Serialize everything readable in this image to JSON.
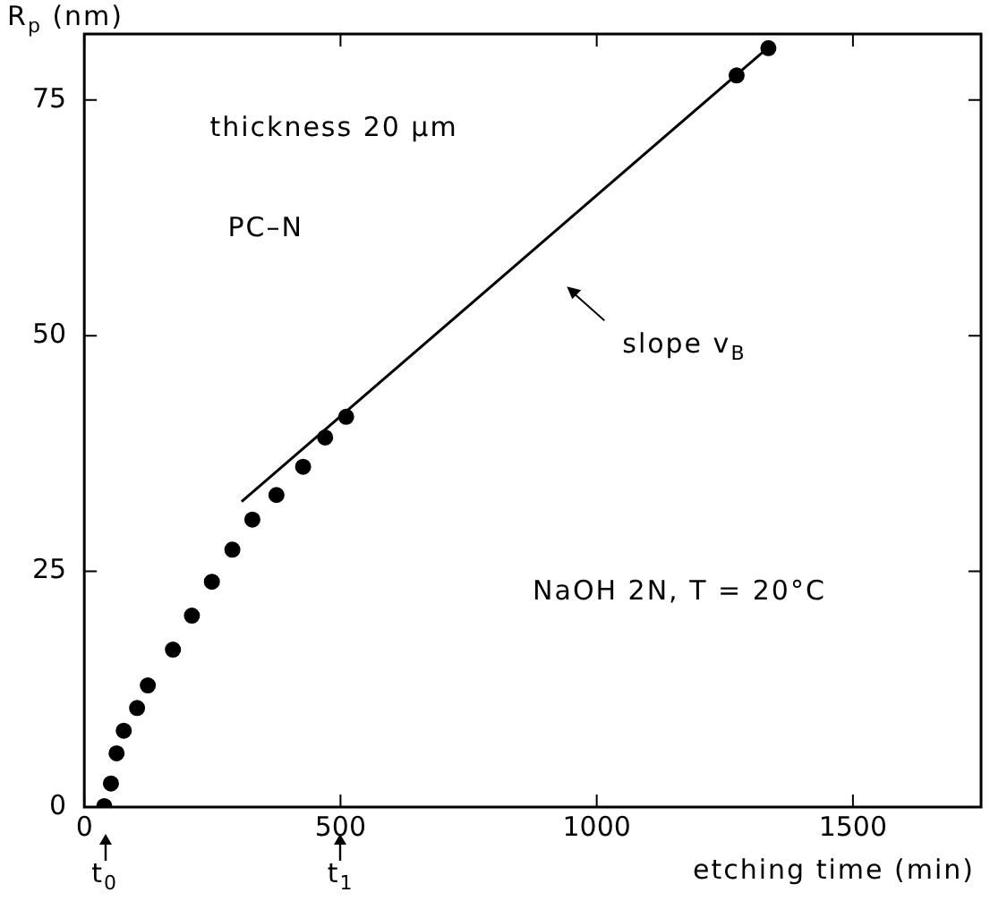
{
  "chart_data": {
    "type": "scatter",
    "xlabel": "etching time (min)",
    "ylabel": "R$_{p}$ (nm)",
    "xlim": [
      0,
      1750
    ],
    "xticks": [
      0,
      500,
      1000,
      1500
    ],
    "ylim": [
      0,
      82
    ],
    "yticks": [
      0,
      25,
      50,
      75
    ],
    "series": [
      {
        "type": "scatter",
        "color": "#000000",
        "marker": "circle",
        "x": [
          39,
          52,
          63,
          77,
          103,
          124,
          173,
          210,
          249,
          289,
          328,
          375,
          427,
          470,
          511,
          1273,
          1335
        ],
        "values": [
          0.1,
          2.5,
          5.7,
          8.1,
          10.5,
          12.9,
          16.7,
          20.3,
          23.9,
          27.3,
          30.5,
          33.1,
          36.1,
          39.2,
          41.4,
          77.6,
          80.5
        ]
      },
      {
        "type": "line",
        "color": "#000000",
        "marker": "none",
        "x": [
          307,
          1333
        ],
        "values": [
          32.4,
          80.5
        ]
      }
    ],
    "grid": false,
    "legend": false,
    "annotations": [
      "thickness 20 μm",
      "PC–N",
      "slope v$_{B}$",
      "NaOH 2N, T = 20°C",
      "t$_{0}$",
      "t$_{1}$"
    ]
  }
}
